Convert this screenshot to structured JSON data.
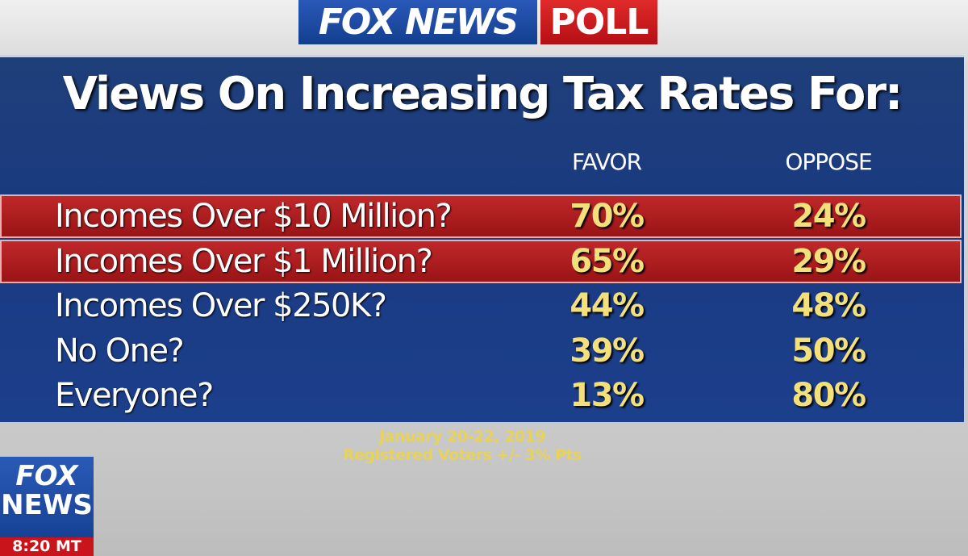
{
  "header": {
    "brand": "FOX NEWS",
    "label": "POLL"
  },
  "title": "Views On Increasing Tax Rates For:",
  "table": {
    "columns": [
      "FAVOR",
      "OPPOSE"
    ],
    "rows": [
      [
        "Incomes Over $10 Million?",
        "70%",
        "24%"
      ],
      [
        "Incomes Over $1 Million?",
        "65%",
        "29%"
      ],
      [
        "Incomes Over $250K?",
        "44%",
        "48%"
      ],
      [
        "No One?",
        "39%",
        "50%"
      ],
      [
        "Everyone?",
        "13%",
        "80%"
      ]
    ]
  },
  "footer": {
    "date": "January 20-22, 2019",
    "note": "Registered Voters +/- 3% Pts"
  },
  "bug": {
    "brand_top": "FOX",
    "brand_bottom": "NEWS",
    "time": "8:20 MT"
  }
}
